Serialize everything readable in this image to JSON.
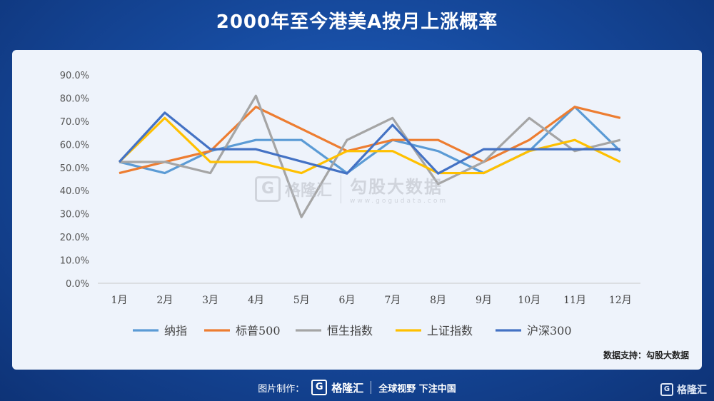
{
  "title": "2000年至今港美A按月上涨概率",
  "source_label": "数据支持：勾股大数据",
  "watermark": {
    "brand": "格隆汇",
    "logo": "G",
    "cn": "勾股大数据",
    "url": "www.gogudata.com"
  },
  "footer": {
    "made_by": "图片制作：",
    "brand": "格隆汇",
    "logo": "G",
    "slogan": "全球视野 下注中国"
  },
  "corner": {
    "brand": "格隆汇",
    "logo": "G"
  },
  "chart_data": {
    "type": "line",
    "title": "2000年至今港美A按月上涨概率",
    "categories": [
      "1月",
      "2月",
      "3月",
      "4月",
      "5月",
      "6月",
      "7月",
      "8月",
      "9月",
      "10月",
      "11月",
      "12月"
    ],
    "ylim": [
      0,
      90
    ],
    "yticks": [
      "0.0%",
      "10.0%",
      "20.0%",
      "30.0%",
      "40.0%",
      "50.0%",
      "60.0%",
      "70.0%",
      "80.0%",
      "90.0%"
    ],
    "grid": false,
    "legend_position": "bottom",
    "series": [
      {
        "name": "纳指",
        "color": "#5b9bd5",
        "values": [
          52.4,
          47.6,
          57.1,
          61.9,
          61.9,
          47.6,
          61.9,
          57.1,
          47.6,
          57.1,
          76.2,
          57.1
        ]
      },
      {
        "name": "标普500",
        "color": "#ed7d31",
        "values": [
          47.6,
          52.4,
          57.1,
          76.2,
          66.7,
          57.1,
          61.9,
          61.9,
          52.4,
          61.9,
          76.2,
          71.4
        ]
      },
      {
        "name": "恒生指数",
        "color": "#a5a5a5",
        "values": [
          52.4,
          52.4,
          47.6,
          81.0,
          28.6,
          61.9,
          71.4,
          42.9,
          52.4,
          71.4,
          57.1,
          61.9
        ]
      },
      {
        "name": "上证指数",
        "color": "#ffc000",
        "values": [
          52.4,
          71.4,
          52.4,
          52.4,
          47.6,
          57.1,
          57.1,
          47.6,
          47.6,
          57.1,
          61.9,
          52.4
        ]
      },
      {
        "name": "沪深300",
        "color": "#4472c4",
        "values": [
          52.4,
          73.7,
          57.9,
          57.9,
          52.6,
          47.4,
          68.4,
          47.4,
          57.9,
          57.9,
          57.9,
          57.9
        ]
      }
    ]
  }
}
